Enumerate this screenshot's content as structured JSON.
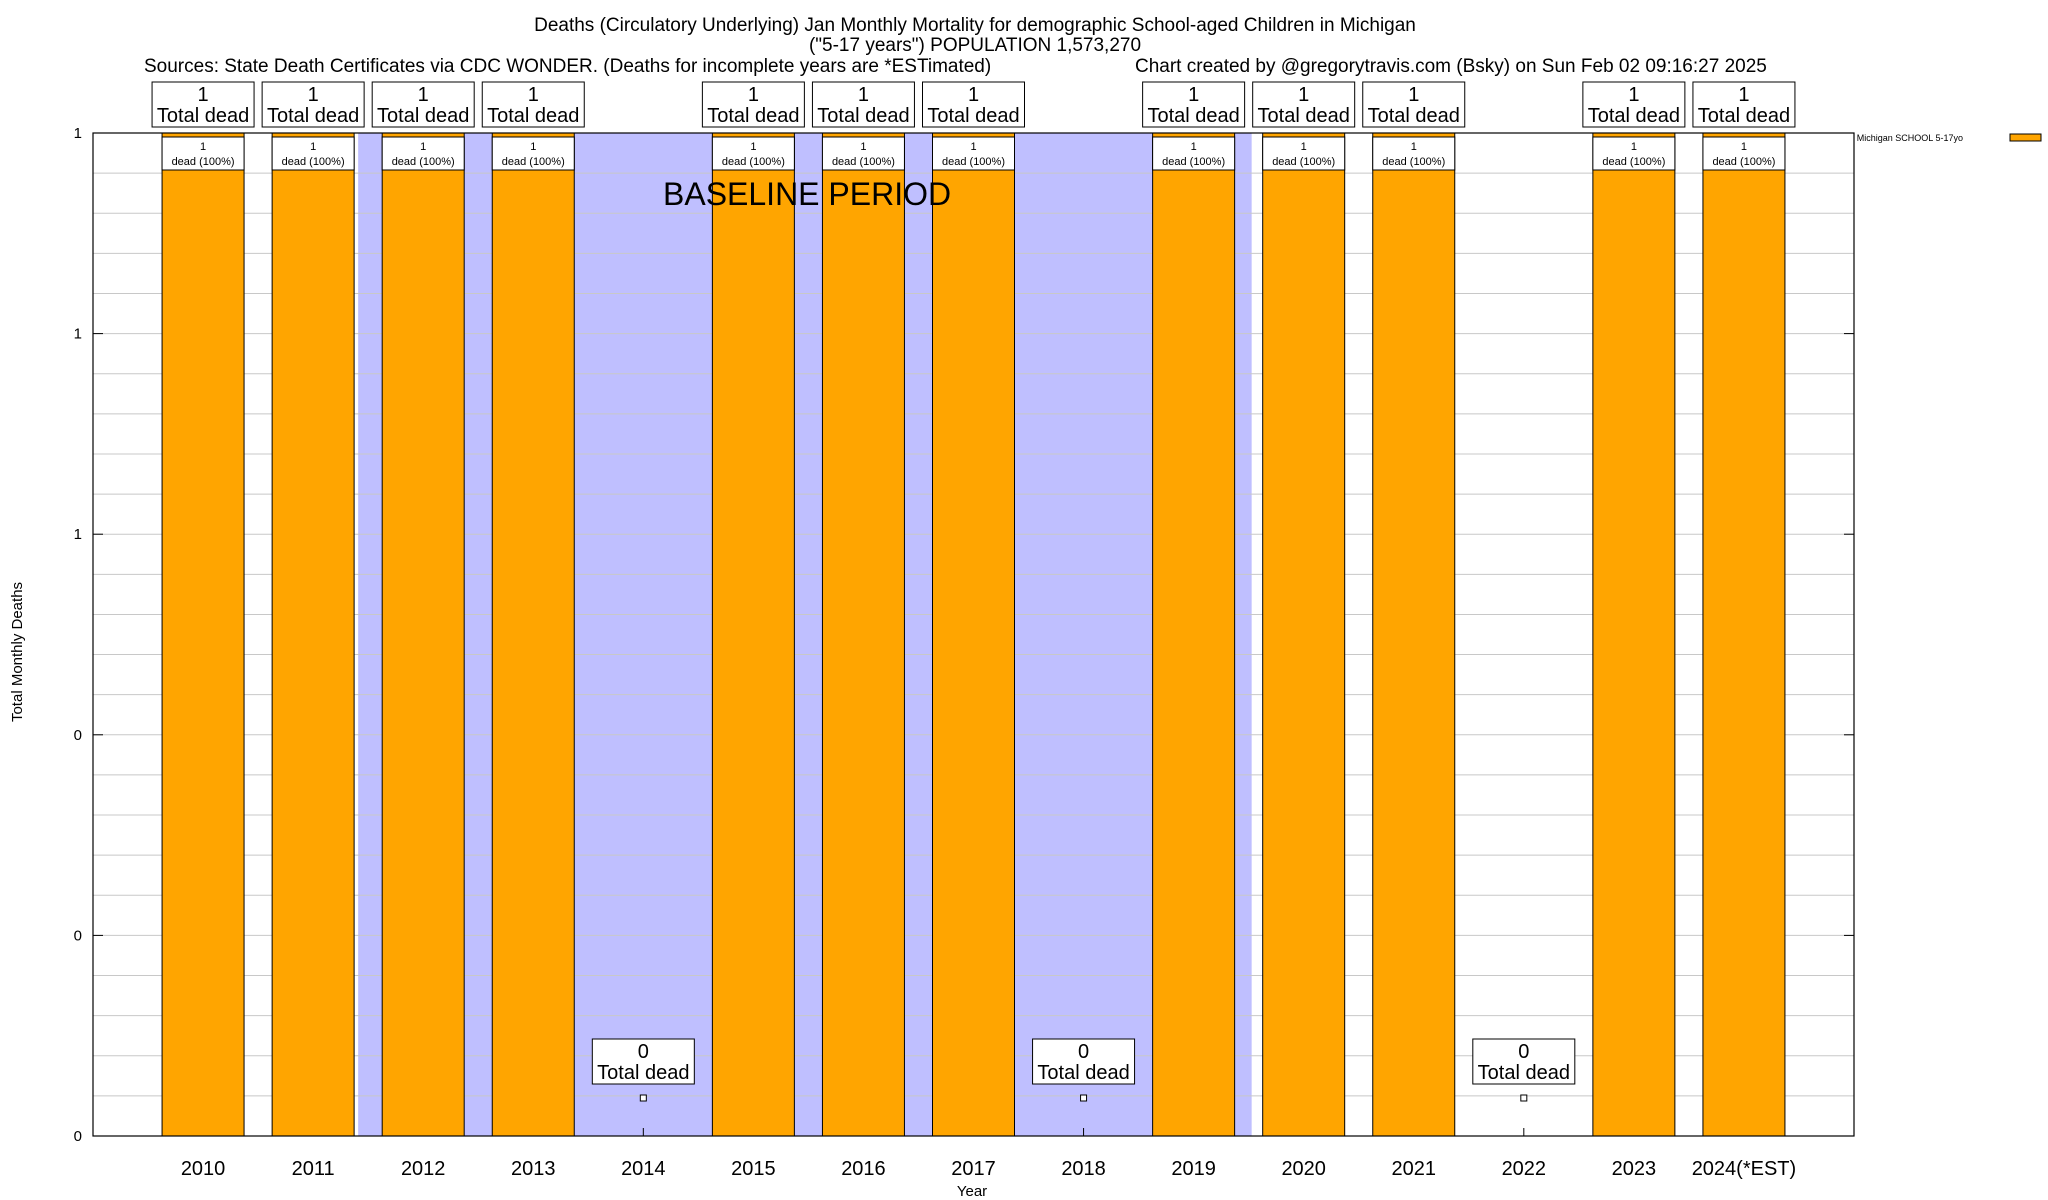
{
  "chart_data": {
    "type": "bar",
    "title_lines": [
      "Deaths (Circulatory Underlying) Jan Monthly Mortality for demographic School-aged Children in Michigan",
      "(\"5-17 years\") POPULATION 1,573,270"
    ],
    "sources": "Sources: State Death Certificates via CDC WONDER. (Deaths for incomplete years are *ESTimated)",
    "credit": "Chart created by @gregorytravis.com (Bsky) on Sun Feb 02 09:16:27 2025",
    "xlabel": "Year",
    "ylabel": "Total Monthly Deaths",
    "ylim": [
      0,
      1
    ],
    "yticks": [
      {
        "value": 0,
        "label": "0"
      },
      {
        "value": 0.2,
        "label": "0"
      },
      {
        "value": 0.4,
        "label": "0"
      },
      {
        "value": 0.6,
        "label": "1"
      },
      {
        "value": 0.8,
        "label": "1"
      },
      {
        "value": 1,
        "label": "1"
      }
    ],
    "categories": [
      "2010",
      "2011",
      "2012",
      "2013",
      "2014",
      "2015",
      "2016",
      "2017",
      "2018",
      "2019",
      "2020",
      "2021",
      "2022",
      "2023",
      "2024(*EST)"
    ],
    "series": [
      {
        "name": "Michigan SCHOOL 5-17yo",
        "color": "#ffa500",
        "values": [
          1,
          1,
          1,
          1,
          0,
          1,
          1,
          1,
          0,
          1,
          1,
          1,
          0,
          1,
          1
        ]
      }
    ],
    "total_labels": [
      "1",
      "1",
      "1",
      "1",
      "0",
      "1",
      "1",
      "1",
      "0",
      "1",
      "1",
      "1",
      "0",
      "1",
      "1"
    ],
    "total_label_suffix": "Total dead",
    "bar_label_values": [
      "1",
      "1",
      "1",
      "1",
      "",
      "1",
      "1",
      "1",
      "",
      "1",
      "1",
      "1",
      "",
      "1",
      "1"
    ],
    "bar_label_suffix": "dead (100%)",
    "baseline": {
      "label": "BASELINE PERIOD",
      "color": "#bfbfff",
      "start_index": 2,
      "end_index": 9
    },
    "legend": {
      "position": "top-right",
      "label": "Michigan SCHOOL 5-17yo",
      "color": "#ffa500"
    },
    "grid": true
  }
}
